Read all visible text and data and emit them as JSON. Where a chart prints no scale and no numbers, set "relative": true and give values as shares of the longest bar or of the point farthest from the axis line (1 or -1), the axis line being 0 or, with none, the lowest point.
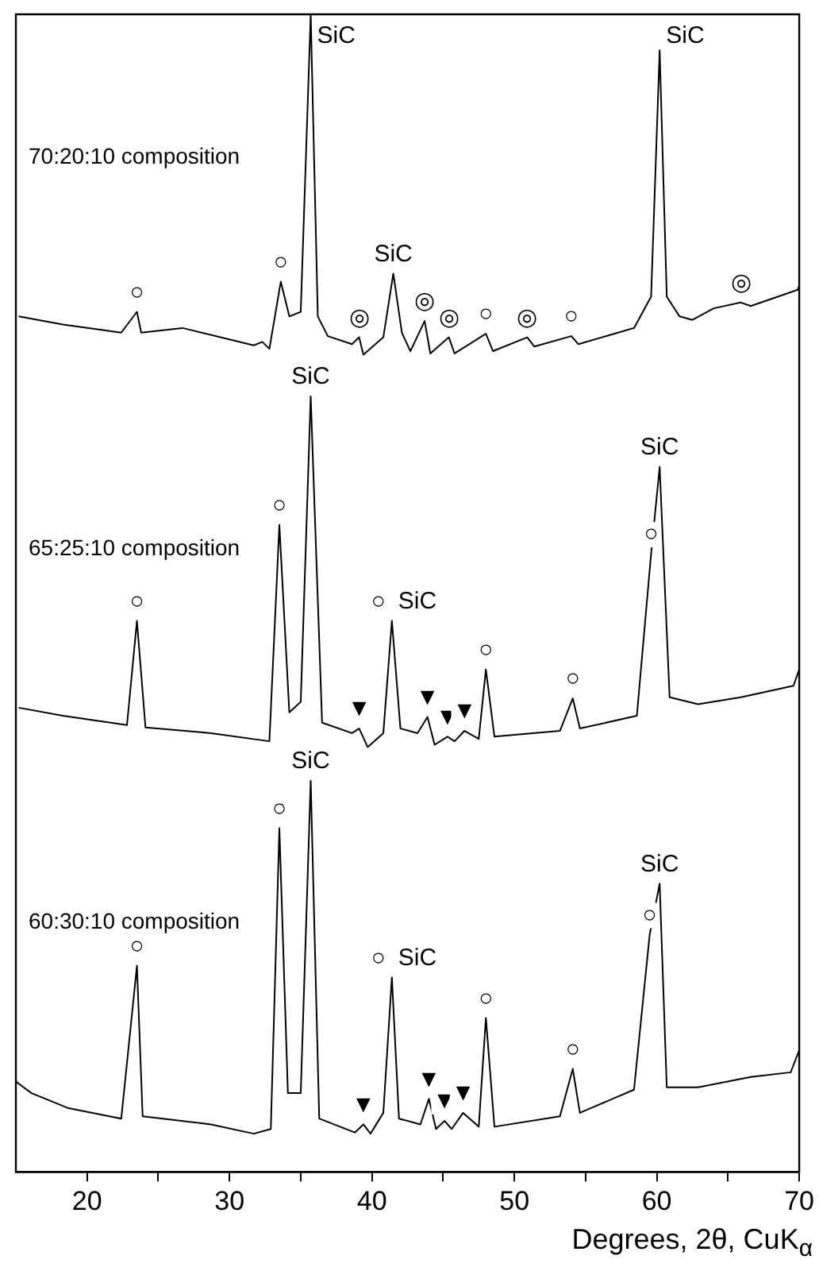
{
  "chart_data": {
    "type": "line",
    "relative": true,
    "xlabel": "Degrees, 2θ, CuK$_{α}$",
    "xlim": [
      15,
      70
    ],
    "xticks": [
      20,
      {
        "value": 25,
        "label": null
      },
      30,
      {
        "value": 35,
        "label": null
      },
      40,
      {
        "value": 45,
        "label": null
      },
      50,
      {
        "value": 55,
        "label": null
      },
      60,
      {
        "value": 65,
        "label": null
      },
      70
    ],
    "legend": false,
    "grid": false,
    "marker": "none",
    "line_style": "solid",
    "series": [
      {
        "name": "70:20:10 composition",
        "color": "#000000",
        "x": [
          15.2,
          18.3,
          22.4,
          23.5,
          23.8,
          26.7,
          31.7,
          32.3,
          32.8,
          33.6,
          34.2,
          35.0,
          35.7,
          36.2,
          36.9,
          38.6,
          39.1,
          39.4,
          40.8,
          41.5,
          42.1,
          42.7,
          43.7,
          44.1,
          45.4,
          45.8,
          48.0,
          48.5,
          50.9,
          51.4,
          54.0,
          54.5,
          58.4,
          59.6,
          60.2,
          60.7,
          61.6,
          62.5,
          64.0,
          65.9,
          66.6,
          69.9,
          70.0
        ],
        "values": [
          0.739,
          0.732,
          0.725,
          0.743,
          0.725,
          0.729,
          0.714,
          0.717,
          0.711,
          0.769,
          0.739,
          0.743,
          1.0,
          0.739,
          0.722,
          0.715,
          0.721,
          0.706,
          0.721,
          0.776,
          0.725,
          0.709,
          0.735,
          0.707,
          0.721,
          0.707,
          0.724,
          0.709,
          0.721,
          0.713,
          0.722,
          0.715,
          0.729,
          0.756,
          0.969,
          0.756,
          0.739,
          0.736,
          0.746,
          0.751,
          0.748,
          0.762,
          0.766
        ]
      },
      {
        "name": "65:25:10 composition",
        "color": "#000000",
        "x": [
          15.2,
          18.3,
          22.8,
          23.5,
          24.1,
          28.7,
          32.8,
          33.5,
          34.2,
          35.0,
          35.7,
          36.5,
          38.6,
          39.1,
          39.7,
          40.8,
          41.4,
          42.0,
          43.2,
          43.9,
          44.4,
          45.3,
          45.8,
          46.5,
          47.5,
          48.0,
          48.6,
          53.2,
          54.1,
          54.6,
          58.6,
          59.6,
          60.2,
          60.9,
          62.9,
          65.9,
          69.6,
          70.0
        ],
        "values": [
          0.401,
          0.394,
          0.386,
          0.476,
          0.384,
          0.379,
          0.372,
          0.559,
          0.397,
          0.406,
          0.67,
          0.388,
          0.379,
          0.383,
          0.367,
          0.379,
          0.476,
          0.383,
          0.379,
          0.393,
          0.369,
          0.376,
          0.372,
          0.381,
          0.374,
          0.434,
          0.376,
          0.381,
          0.409,
          0.383,
          0.394,
          0.534,
          0.609,
          0.41,
          0.404,
          0.41,
          0.42,
          0.434
        ]
      },
      {
        "name": "60:30:10 composition",
        "color": "#000000",
        "x": [
          15.0,
          16.1,
          18.7,
          22.4,
          23.5,
          23.9,
          28.7,
          31.7,
          32.9,
          33.5,
          34.1,
          35.0,
          35.7,
          36.3,
          38.8,
          39.4,
          39.9,
          40.8,
          41.4,
          41.9,
          43.4,
          44.0,
          44.5,
          45.1,
          45.6,
          46.4,
          47.5,
          48.0,
          48.6,
          53.2,
          54.1,
          54.6,
          58.4,
          59.5,
          60.2,
          60.7,
          62.9,
          66.6,
          69.4,
          70.0
        ],
        "values": [
          0.078,
          0.068,
          0.055,
          0.046,
          0.178,
          0.048,
          0.041,
          0.033,
          0.037,
          0.297,
          0.068,
          0.068,
          0.338,
          0.046,
          0.034,
          0.041,
          0.033,
          0.051,
          0.168,
          0.046,
          0.041,
          0.063,
          0.037,
          0.044,
          0.037,
          0.051,
          0.039,
          0.133,
          0.039,
          0.048,
          0.089,
          0.051,
          0.071,
          0.205,
          0.249,
          0.073,
          0.073,
          0.082,
          0.086,
          0.105
        ]
      }
    ],
    "annotations": [
      {
        "text": "SiC",
        "x": 35.7,
        "y": 1.0
      },
      {
        "text": "SiC",
        "x": 41.5,
        "y": 0.776
      },
      {
        "text": "SiC",
        "x": 60.2,
        "y": 0.969
      },
      {
        "text": "○",
        "x": 23.5,
        "y": 0.743
      },
      {
        "text": "○",
        "x": 33.6,
        "y": 0.769
      },
      {
        "text": "◎",
        "x": 39.1,
        "y": 0.721
      },
      {
        "text": "◎",
        "x": 43.7,
        "y": 0.735
      },
      {
        "text": "◎",
        "x": 45.4,
        "y": 0.721
      },
      {
        "text": "○",
        "x": 48.0,
        "y": 0.724
      },
      {
        "text": "◎",
        "x": 50.9,
        "y": 0.721
      },
      {
        "text": "○",
        "x": 54.0,
        "y": 0.722
      },
      {
        "text": "◎",
        "x": 65.9,
        "y": 0.751
      },
      {
        "text": "○",
        "x": 23.5,
        "y": 0.476
      },
      {
        "text": "○",
        "x": 33.5,
        "y": 0.559
      },
      {
        "text": "SiC",
        "x": 35.7,
        "y": 0.67
      },
      {
        "text": "▼",
        "x": 39.1,
        "y": 0.383
      },
      {
        "text": "○",
        "x": 41.4,
        "y": 0.476
      },
      {
        "text": "SiC",
        "x": 41.4,
        "y": 0.476
      },
      {
        "text": "▼",
        "x": 43.9,
        "y": 0.393
      },
      {
        "text": "▼",
        "x": 45.3,
        "y": 0.376
      },
      {
        "text": "▼",
        "x": 46.5,
        "y": 0.381
      },
      {
        "text": "○",
        "x": 48.0,
        "y": 0.434
      },
      {
        "text": "○",
        "x": 54.1,
        "y": 0.409
      },
      {
        "text": "○",
        "x": 59.6,
        "y": 0.534
      },
      {
        "text": "SiC",
        "x": 60.2,
        "y": 0.609
      },
      {
        "text": "○",
        "x": 23.5,
        "y": 0.178
      },
      {
        "text": "○",
        "x": 33.5,
        "y": 0.297
      },
      {
        "text": "SiC",
        "x": 35.7,
        "y": 0.338
      },
      {
        "text": "▼",
        "x": 39.4,
        "y": 0.041
      },
      {
        "text": "○",
        "x": 41.4,
        "y": 0.168
      },
      {
        "text": "SiC",
        "x": 41.4,
        "y": 0.168
      },
      {
        "text": "▼",
        "x": 44.0,
        "y": 0.063
      },
      {
        "text": "▼",
        "x": 45.1,
        "y": 0.044
      },
      {
        "text": "▼",
        "x": 46.4,
        "y": 0.051
      },
      {
        "text": "○",
        "x": 48.0,
        "y": 0.133
      },
      {
        "text": "○",
        "x": 54.1,
        "y": 0.089
      },
      {
        "text": "○",
        "x": 59.5,
        "y": 0.205
      },
      {
        "text": "SiC",
        "x": 60.2,
        "y": 0.249
      }
    ]
  }
}
